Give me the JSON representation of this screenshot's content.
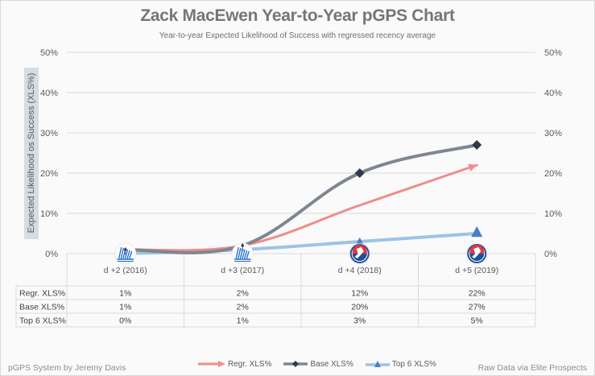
{
  "chart_data": {
    "type": "line",
    "title": "Zack MacEwen Year-to-Year pGPS Chart",
    "subtitle": "Year-to-year Expected Likelihood of Success with regressed recency average",
    "ylabel": "Expected Likelihood os Success (XLS%)",
    "xlabel": "",
    "ylim": [
      0,
      50
    ],
    "yticks": [
      "0%",
      "10%",
      "20%",
      "30%",
      "40%",
      "50%"
    ],
    "ytick_values": [
      0,
      10,
      20,
      30,
      40,
      50
    ],
    "grid": true,
    "secondary_axis": true,
    "categories": [
      "d +2 (2016)",
      "d +3 (2017)",
      "d +4 (2018)",
      "d +5 (2019)"
    ],
    "league_logos": [
      "QMJHL",
      "QMJHL",
      "AHL",
      "AHL"
    ],
    "series": [
      {
        "name": "Regr. XLS%",
        "values": [
          1,
          2,
          12,
          22
        ],
        "labels": [
          "1%",
          "2%",
          "12%",
          "22%"
        ],
        "color": "#f08c8c",
        "marker": "arrow"
      },
      {
        "name": "Base XLS%",
        "values": [
          1,
          2,
          20,
          27
        ],
        "labels": [
          "1%",
          "2%",
          "20%",
          "27%"
        ],
        "color": "#7f8691",
        "marker": "diamond",
        "marker_color": "#2f3a4d"
      },
      {
        "name": "Top 6 XLS%",
        "values": [
          0,
          1,
          3,
          5
        ],
        "labels": [
          "0%",
          "1%",
          "3%",
          "5%"
        ],
        "color": "#9dc3e6",
        "marker": "triangle",
        "marker_color": "#4a7fc1"
      }
    ],
    "legend_position": "bottom",
    "data_table": true
  },
  "credits": {
    "left": "pGPS System by Jeremy Davis",
    "right": "Raw Data via Elite Prospects"
  }
}
